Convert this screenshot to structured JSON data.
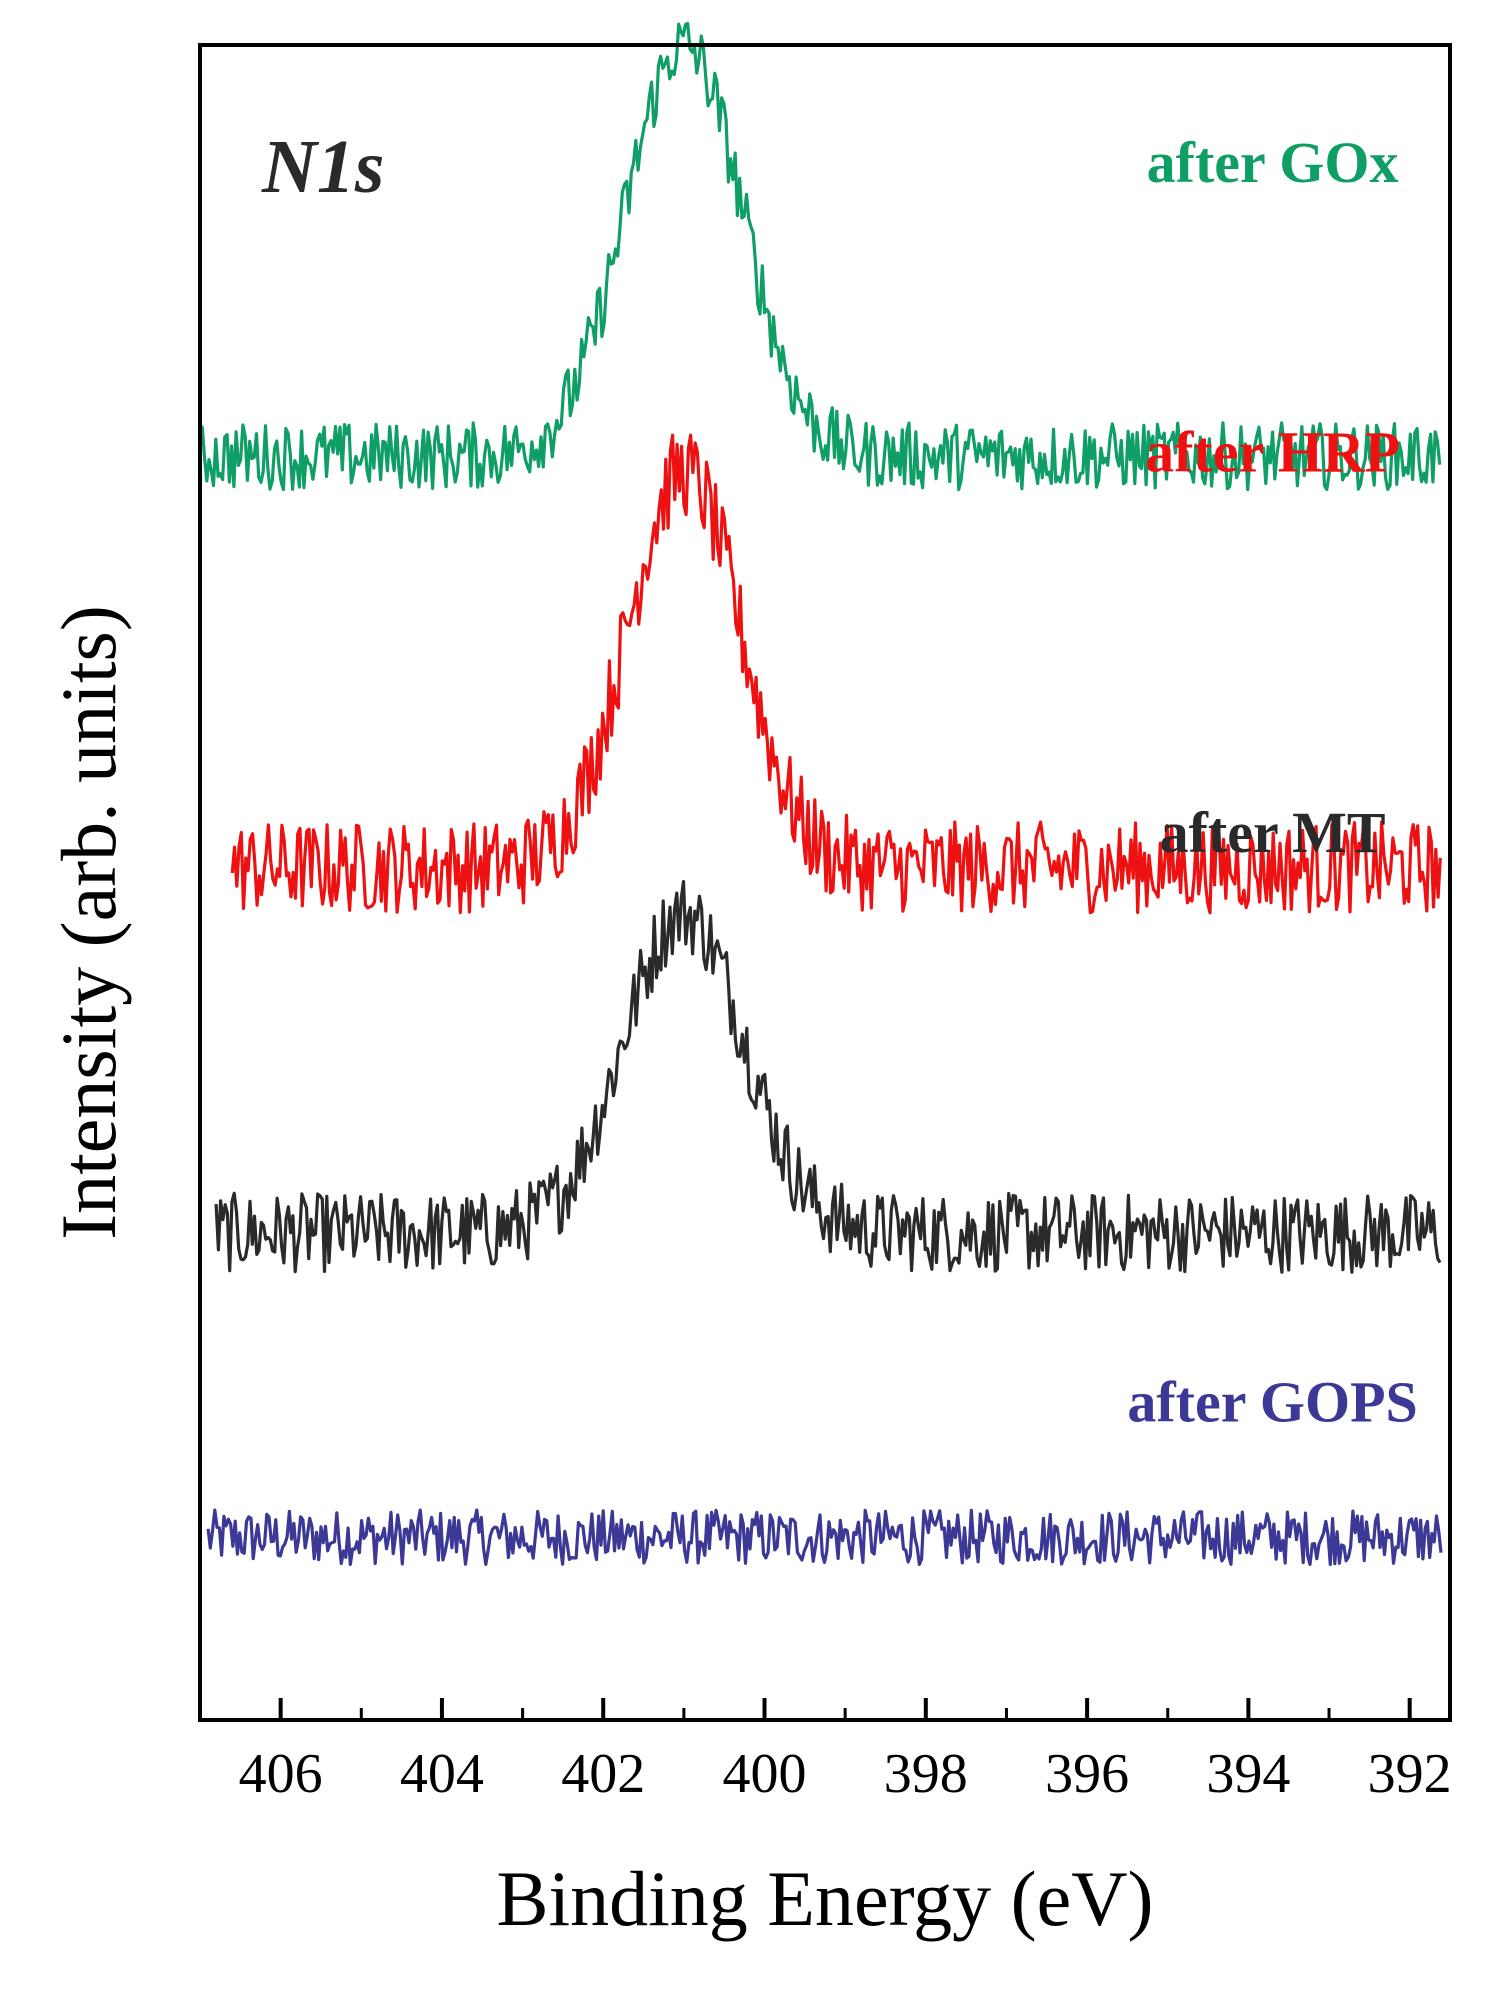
{
  "chart_data": {
    "type": "line",
    "panel_label": "N1s",
    "xlabel": "Binding Energy (eV)",
    "ylabel": "Intensity (arb. units)",
    "xlim": [
      407,
      391.5
    ],
    "x_reversed": true,
    "xticks": [
      406,
      404,
      402,
      400,
      398,
      396,
      394,
      392
    ],
    "yticks_shown": false,
    "grid": false,
    "series": [
      {
        "name": "after GOPS",
        "color": "#3b3896",
        "offset": 0.0,
        "peak_center": 401.0,
        "peak_height": 0.0,
        "peak_width": 1.0,
        "noise": 0.09,
        "x_start": 406.9,
        "x_end": 391.6
      },
      {
        "name": "after MT",
        "color": "#2a2a2a",
        "offset": 1.0,
        "peak_center": 401.0,
        "peak_height": 1.05,
        "peak_width": 0.75,
        "noise": 0.13,
        "x_start": 406.8,
        "x_end": 391.6
      },
      {
        "name": "after HRP",
        "color": "#ee1111",
        "offset": 2.2,
        "peak_center": 401.0,
        "peak_height": 1.3,
        "peak_width": 0.7,
        "noise": 0.15,
        "x_start": 406.6,
        "x_end": 391.6
      },
      {
        "name": "after GOx",
        "color": "#0f9e66",
        "offset": 3.55,
        "peak_center": 401.0,
        "peak_height": 1.35,
        "peak_width": 0.72,
        "noise": 0.11,
        "x_start": 407.0,
        "x_end": 391.6
      }
    ],
    "series_labels": [
      {
        "text": "after GOx",
        "color": "#0f9e66",
        "x": 393.7,
        "y": 4.45
      },
      {
        "text": "after HRP",
        "color": "#ee1111",
        "x": 393.7,
        "y": 3.5
      },
      {
        "text": "after MT",
        "color": "#2a2a2a",
        "x": 393.7,
        "y": 2.25
      },
      {
        "text": "after GOPS",
        "color": "#3b3896",
        "x": 393.7,
        "y": 0.38
      }
    ],
    "ylim": [
      -0.6,
      4.9
    ]
  }
}
